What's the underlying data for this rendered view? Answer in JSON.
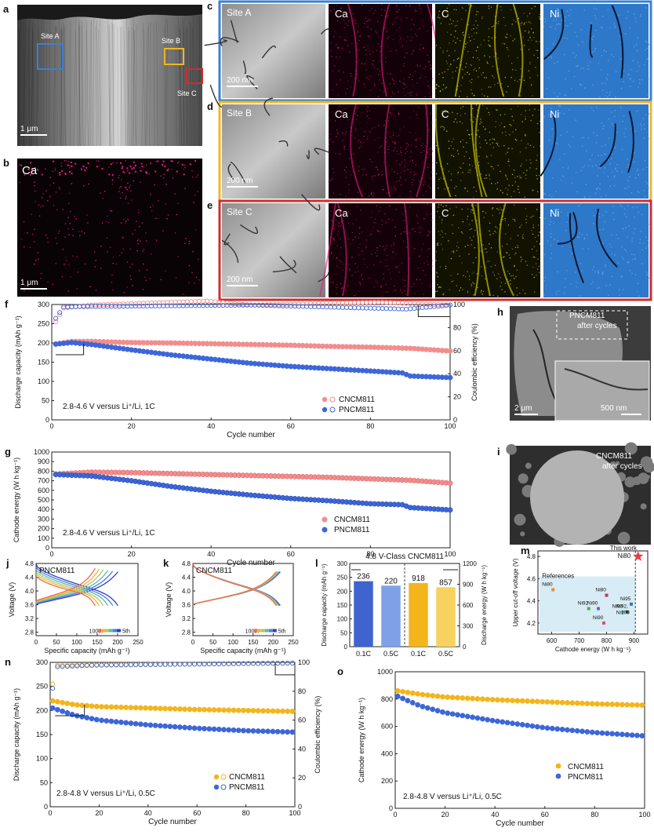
{
  "colors": {
    "cncm": "#f28d8d",
    "cncm_edge": "#d85a5a",
    "pncm": "#3d66d8",
    "pncm_edge": "#1d3fa8",
    "gold": "#f3b51b",
    "gold_light": "#f7d25e",
    "site_a": "#3b80d3",
    "site_b": "#f0b722",
    "site_c": "#d22c2c",
    "map_ni": "#2d78c8",
    "map_c": "#e6e200",
    "map_ca": "#e21a7f"
  },
  "panels": {
    "a": {
      "letter": "a",
      "sites": [
        "Site A",
        "Site B",
        "Site C"
      ],
      "scale": "1 μm"
    },
    "b": {
      "letter": "b",
      "element": "Ca",
      "scale": "1 μm"
    },
    "c": {
      "letter": "c",
      "site": "Site A",
      "scale": "200 nm",
      "maps": [
        "Ca",
        "C",
        "Ni"
      ]
    },
    "d": {
      "letter": "d",
      "site": "Site B",
      "scale": "200 nm",
      "maps": [
        "Ca",
        "C",
        "Ni"
      ]
    },
    "e": {
      "letter": "e",
      "site": "Site C",
      "scale": "200 nm",
      "maps": [
        "Ca",
        "C",
        "Ni"
      ]
    },
    "h": {
      "letter": "h",
      "caption": "PNCM811\nafter cycles",
      "scale_main": "2 μm",
      "scale_inset": "500 nm"
    },
    "i": {
      "letter": "i",
      "caption": "CNCM811\nafter cycles"
    }
  },
  "chart_data": [
    {
      "id": "f",
      "letter": "f",
      "type": "scatter",
      "xlabel": "Cycle number",
      "ylabel": "Discharge capacity (mAh g⁻¹)",
      "y2label": "Coulombic efficiency (%)",
      "xlim": [
        0,
        100
      ],
      "ylim": [
        0,
        300
      ],
      "y2lim": [
        0,
        100
      ],
      "xticks": [
        0,
        20,
        40,
        60,
        80,
        100
      ],
      "yticks": [
        0,
        50,
        100,
        150,
        200,
        250,
        300
      ],
      "y2ticks": [
        0,
        20,
        40,
        60,
        80,
        100
      ],
      "annotation": "2.8-4.6 V versus Li⁺/Li, 1C",
      "series": [
        {
          "name": "CNCM811",
          "role": "capacity",
          "style": "filled",
          "points": [
            [
              1,
              197
            ],
            [
              5,
              204
            ],
            [
              10,
              204
            ],
            [
              20,
              201
            ],
            [
              30,
              200
            ],
            [
              40,
              198
            ],
            [
              50,
              196
            ],
            [
              60,
              194
            ],
            [
              70,
              191
            ],
            [
              80,
              189
            ],
            [
              90,
              186
            ],
            [
              100,
              179
            ]
          ]
        },
        {
          "name": "PNCM811",
          "role": "capacity",
          "style": "filled",
          "points": [
            [
              1,
              197
            ],
            [
              5,
              201
            ],
            [
              10,
              196
            ],
            [
              20,
              182
            ],
            [
              30,
              169
            ],
            [
              40,
              158
            ],
            [
              50,
              147
            ],
            [
              60,
              139
            ],
            [
              70,
              133
            ],
            [
              80,
              127
            ],
            [
              88,
              122
            ],
            [
              90,
              114
            ],
            [
              100,
              110
            ]
          ]
        },
        {
          "name": "CNCM811",
          "role": "efficiency",
          "style": "hollow",
          "points": [
            [
              1,
              85
            ],
            [
              3,
              97
            ],
            [
              10,
              99.5
            ],
            [
              39,
              103
            ],
            [
              50,
              99.5
            ],
            [
              82,
              102
            ],
            [
              100,
              99.5
            ]
          ]
        },
        {
          "name": "PNCM811",
          "role": "efficiency",
          "style": "hollow",
          "points": [
            [
              1,
              88
            ],
            [
              3,
              98
            ],
            [
              50,
              99.5
            ],
            [
              89,
              96
            ],
            [
              100,
              99.5
            ]
          ]
        }
      ]
    },
    {
      "id": "g",
      "letter": "g",
      "type": "scatter",
      "xlabel": "Cycle number",
      "ylabel": "Cathode energy (W h kg⁻¹)",
      "xlim": [
        0,
        100
      ],
      "ylim": [
        0,
        1000
      ],
      "xticks": [
        0,
        20,
        40,
        60,
        80,
        100
      ],
      "yticks": [
        0,
        100,
        200,
        300,
        400,
        500,
        600,
        700,
        800,
        900,
        1000
      ],
      "annotation": "2.8-4.6 V versus Li⁺/Li, 1C",
      "series": [
        {
          "name": "CNCM811",
          "points": [
            [
              1,
              770
            ],
            [
              10,
              790
            ],
            [
              20,
              785
            ],
            [
              30,
              775
            ],
            [
              40,
              765
            ],
            [
              50,
              755
            ],
            [
              60,
              745
            ],
            [
              70,
              735
            ],
            [
              80,
              720
            ],
            [
              90,
              705
            ],
            [
              100,
              675
            ]
          ]
        },
        {
          "name": "PNCM811",
          "points": [
            [
              1,
              765
            ],
            [
              10,
              750
            ],
            [
              20,
              700
            ],
            [
              30,
              640
            ],
            [
              40,
              590
            ],
            [
              50,
              550
            ],
            [
              60,
              515
            ],
            [
              70,
              490
            ],
            [
              80,
              460
            ],
            [
              88,
              450
            ],
            [
              90,
              420
            ],
            [
              100,
              395
            ]
          ]
        }
      ]
    },
    {
      "id": "j",
      "letter": "j",
      "type": "line",
      "label": "PNCM811",
      "xlabel": "Specific capacity (mAh g⁻¹)",
      "ylabel": "Voltage (V)",
      "xlim": [
        0,
        250
      ],
      "ylim": [
        2.7,
        4.8
      ],
      "xticks": [
        0,
        50,
        100,
        150,
        200,
        250
      ],
      "yticks": [
        2.8,
        3.2,
        3.6,
        4.0,
        4.4,
        4.8
      ],
      "legend": [
        "100th",
        "5th"
      ],
      "cycle_colors": [
        "#2b3fc6",
        "#4f7ee0",
        "#66b3b6",
        "#9fcf68",
        "#f4b33c",
        "#ed6d4c"
      ],
      "capacities": [
        205,
        192,
        180,
        168,
        158,
        148
      ]
    },
    {
      "id": "k",
      "letter": "k",
      "type": "line",
      "label": "CNCM811",
      "xlabel": "Specific capacity (mAh g⁻¹)",
      "ylabel": "Voltage (V)",
      "xlim": [
        0,
        250
      ],
      "ylim": [
        2.7,
        4.8
      ],
      "xticks": [
        0,
        50,
        100,
        150,
        200,
        250
      ],
      "yticks": [
        2.8,
        3.2,
        3.6,
        4.0,
        4.4,
        4.8
      ],
      "legend": [
        "100th",
        "5th"
      ],
      "cycle_colors": [
        "#2b3fc6",
        "#4f7ee0",
        "#66b3b6",
        "#9fcf68",
        "#f4b33c",
        "#ed6d4c"
      ],
      "capacities": [
        222,
        220,
        218,
        216,
        214,
        212
      ]
    },
    {
      "id": "l",
      "letter": "l",
      "type": "bar",
      "title": "4.8 V-Class CNCM811",
      "ylabel": "Discharge capacity (mAh g⁻¹)",
      "y2label": "Discharge energy (W h kg⁻¹)",
      "ylim": [
        0,
        300
      ],
      "y2lim": [
        0,
        1200
      ],
      "yticks": [
        0,
        50,
        100,
        150,
        200,
        250,
        300
      ],
      "y2ticks": [
        0,
        300,
        600,
        900,
        1200
      ],
      "categories": [
        "0.1C",
        "0.5C",
        "0.1C",
        "0.5C"
      ],
      "values": [
        236,
        220,
        918,
        857
      ],
      "axis": [
        "left",
        "left",
        "right",
        "right"
      ]
    },
    {
      "id": "m",
      "letter": "m",
      "type": "scatter",
      "xlabel": "Cathode energy (W h kg⁻¹)",
      "ylabel": "Upper cut-off voltage (V)",
      "xlim": [
        550,
        950
      ],
      "ylim": [
        4.1,
        4.85
      ],
      "xticks": [
        600,
        700,
        800,
        900
      ],
      "yticks": [
        4.2,
        4.4,
        4.6,
        4.8
      ],
      "references_label": "References",
      "points": [
        {
          "label": "This work\nNi80",
          "x": 915,
          "y": 4.8,
          "marker": "star"
        },
        {
          "label": "Ni80",
          "x": 605,
          "y": 4.5
        },
        {
          "label": "Ni80",
          "x": 800,
          "y": 4.45
        },
        {
          "label": "Ni92",
          "x": 735,
          "y": 4.33
        },
        {
          "label": "Ni90",
          "x": 770,
          "y": 4.33
        },
        {
          "label": "Ni95",
          "x": 890,
          "y": 4.37
        },
        {
          "label": "Ni90",
          "x": 790,
          "y": 4.2
        },
        {
          "label": "Ni90",
          "x": 860,
          "y": 4.3
        },
        {
          "label": "Ni92,\nNi100",
          "x": 875,
          "y": 4.3
        }
      ]
    },
    {
      "id": "n",
      "letter": "n",
      "type": "scatter",
      "xlabel": "Cycle number",
      "ylabel": "Discharge capacity (mAh g⁻¹)",
      "y2label": "Coulombic efficiency (%)",
      "xlim": [
        0,
        100
      ],
      "ylim": [
        0,
        300
      ],
      "y2lim": [
        0,
        100
      ],
      "xticks": [
        0,
        20,
        40,
        60,
        80,
        100
      ],
      "yticks": [
        0,
        50,
        100,
        150,
        200,
        250,
        300
      ],
      "y2ticks": [
        0,
        20,
        40,
        60,
        80,
        100
      ],
      "annotation": "2.8-4.8 V versus Li⁺/Li, 0.5C",
      "series": [
        {
          "name": "CNCM811",
          "role": "capacity",
          "style": "filled",
          "points": [
            [
              1,
              220
            ],
            [
              10,
              212
            ],
            [
              20,
              208
            ],
            [
              40,
              205
            ],
            [
              60,
              202
            ],
            [
              80,
              200
            ],
            [
              100,
              198
            ]
          ]
        },
        {
          "name": "PNCM811",
          "role": "capacity",
          "style": "filled",
          "points": [
            [
              1,
              205
            ],
            [
              10,
              190
            ],
            [
              20,
              180
            ],
            [
              40,
              170
            ],
            [
              60,
              163
            ],
            [
              80,
              158
            ],
            [
              100,
              155
            ]
          ]
        },
        {
          "name": "CNCM811",
          "role": "efficiency",
          "style": "hollow",
          "points": [
            [
              1,
              85
            ],
            [
              3,
              98
            ],
            [
              100,
              99.5
            ]
          ]
        },
        {
          "name": "PNCM811",
          "role": "efficiency",
          "style": "hollow",
          "points": [
            [
              1,
              82
            ],
            [
              3,
              97
            ],
            [
              18,
              98
            ],
            [
              100,
              99.5
            ]
          ]
        }
      ]
    },
    {
      "id": "o",
      "letter": "o",
      "type": "scatter",
      "xlabel": "Cycle number",
      "ylabel": "Cathode energy (W h kg⁻¹)",
      "xlim": [
        0,
        100
      ],
      "ylim": [
        0,
        1000
      ],
      "xticks": [
        0,
        20,
        40,
        60,
        80,
        100
      ],
      "yticks": [
        0,
        200,
        400,
        600,
        800,
        1000
      ],
      "annotation": "2.8-4.8 V versus Li⁺/Li, 0.5C",
      "series": [
        {
          "name": "CNCM811",
          "points": [
            [
              1,
              860
            ],
            [
              10,
              835
            ],
            [
              20,
              815
            ],
            [
              40,
              795
            ],
            [
              60,
              780
            ],
            [
              80,
              765
            ],
            [
              100,
              755
            ]
          ]
        },
        {
          "name": "PNCM811",
          "points": [
            [
              1,
              820
            ],
            [
              10,
              750
            ],
            [
              20,
              700
            ],
            [
              40,
              640
            ],
            [
              60,
              590
            ],
            [
              80,
              555
            ],
            [
              100,
              530
            ]
          ]
        }
      ]
    }
  ]
}
